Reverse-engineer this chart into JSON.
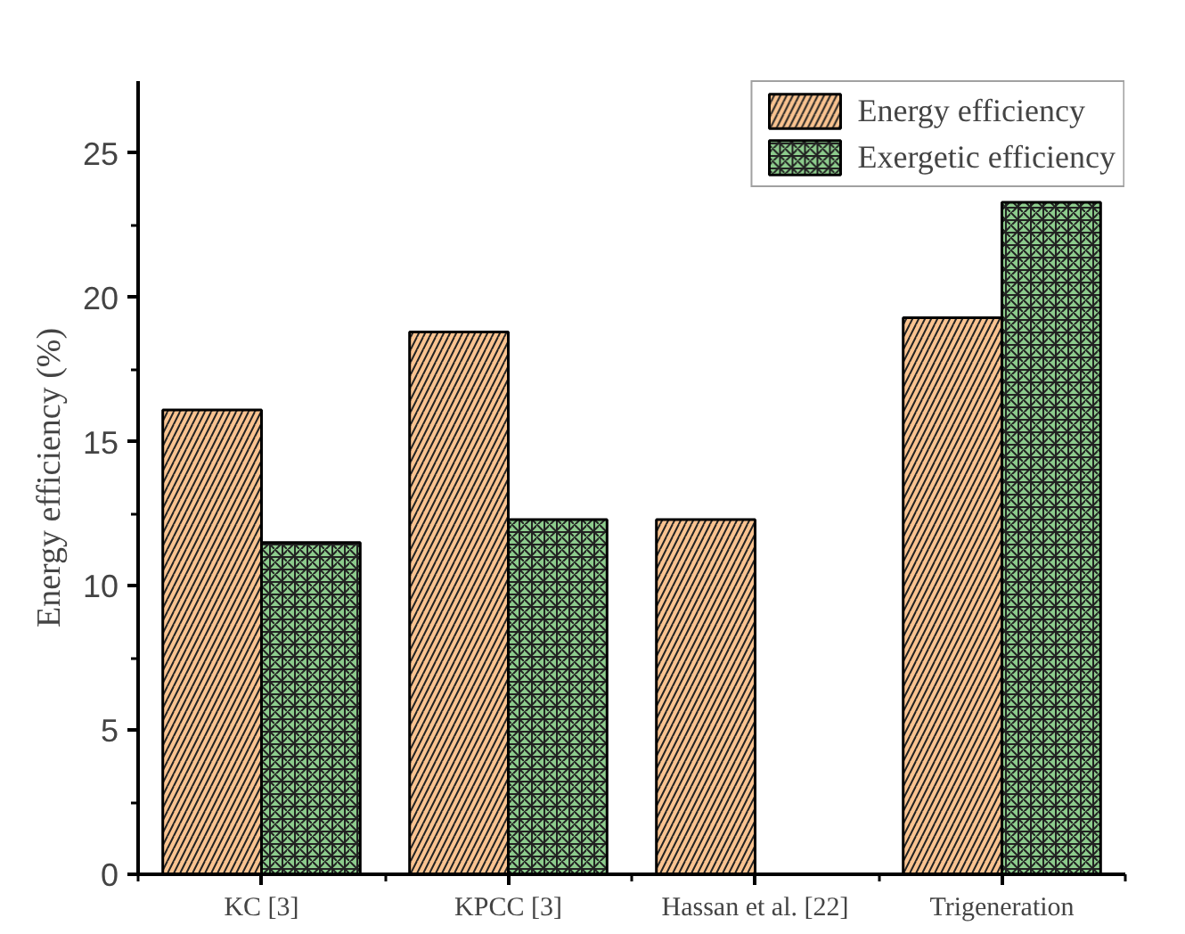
{
  "chart_data": {
    "type": "bar",
    "ylabel": "Energy efficiency (%)",
    "categories": [
      "KC [3]",
      "KPCC [3]",
      "Hassan et al. [22]",
      "Trigeneration"
    ],
    "series": [
      {
        "name": "Energy efficiency",
        "color": "#f9c390",
        "values": [
          16.1,
          18.8,
          12.3,
          19.3
        ]
      },
      {
        "name": "Exergetic efficiency",
        "color": "#8dcc8d",
        "values": [
          11.5,
          12.3,
          null,
          23.3
        ]
      }
    ],
    "ylim": [
      0,
      27.5
    ],
    "yticks": [
      0,
      {
        "value": 2.5,
        "label": null
      },
      5,
      {
        "value": 7.5,
        "label": null
      },
      10,
      {
        "value": 12.5,
        "label": null
      },
      15,
      {
        "value": 17.5,
        "label": null
      },
      20,
      {
        "value": 22.5,
        "label": null
      },
      25
    ],
    "grid": false,
    "legend": "top right"
  }
}
